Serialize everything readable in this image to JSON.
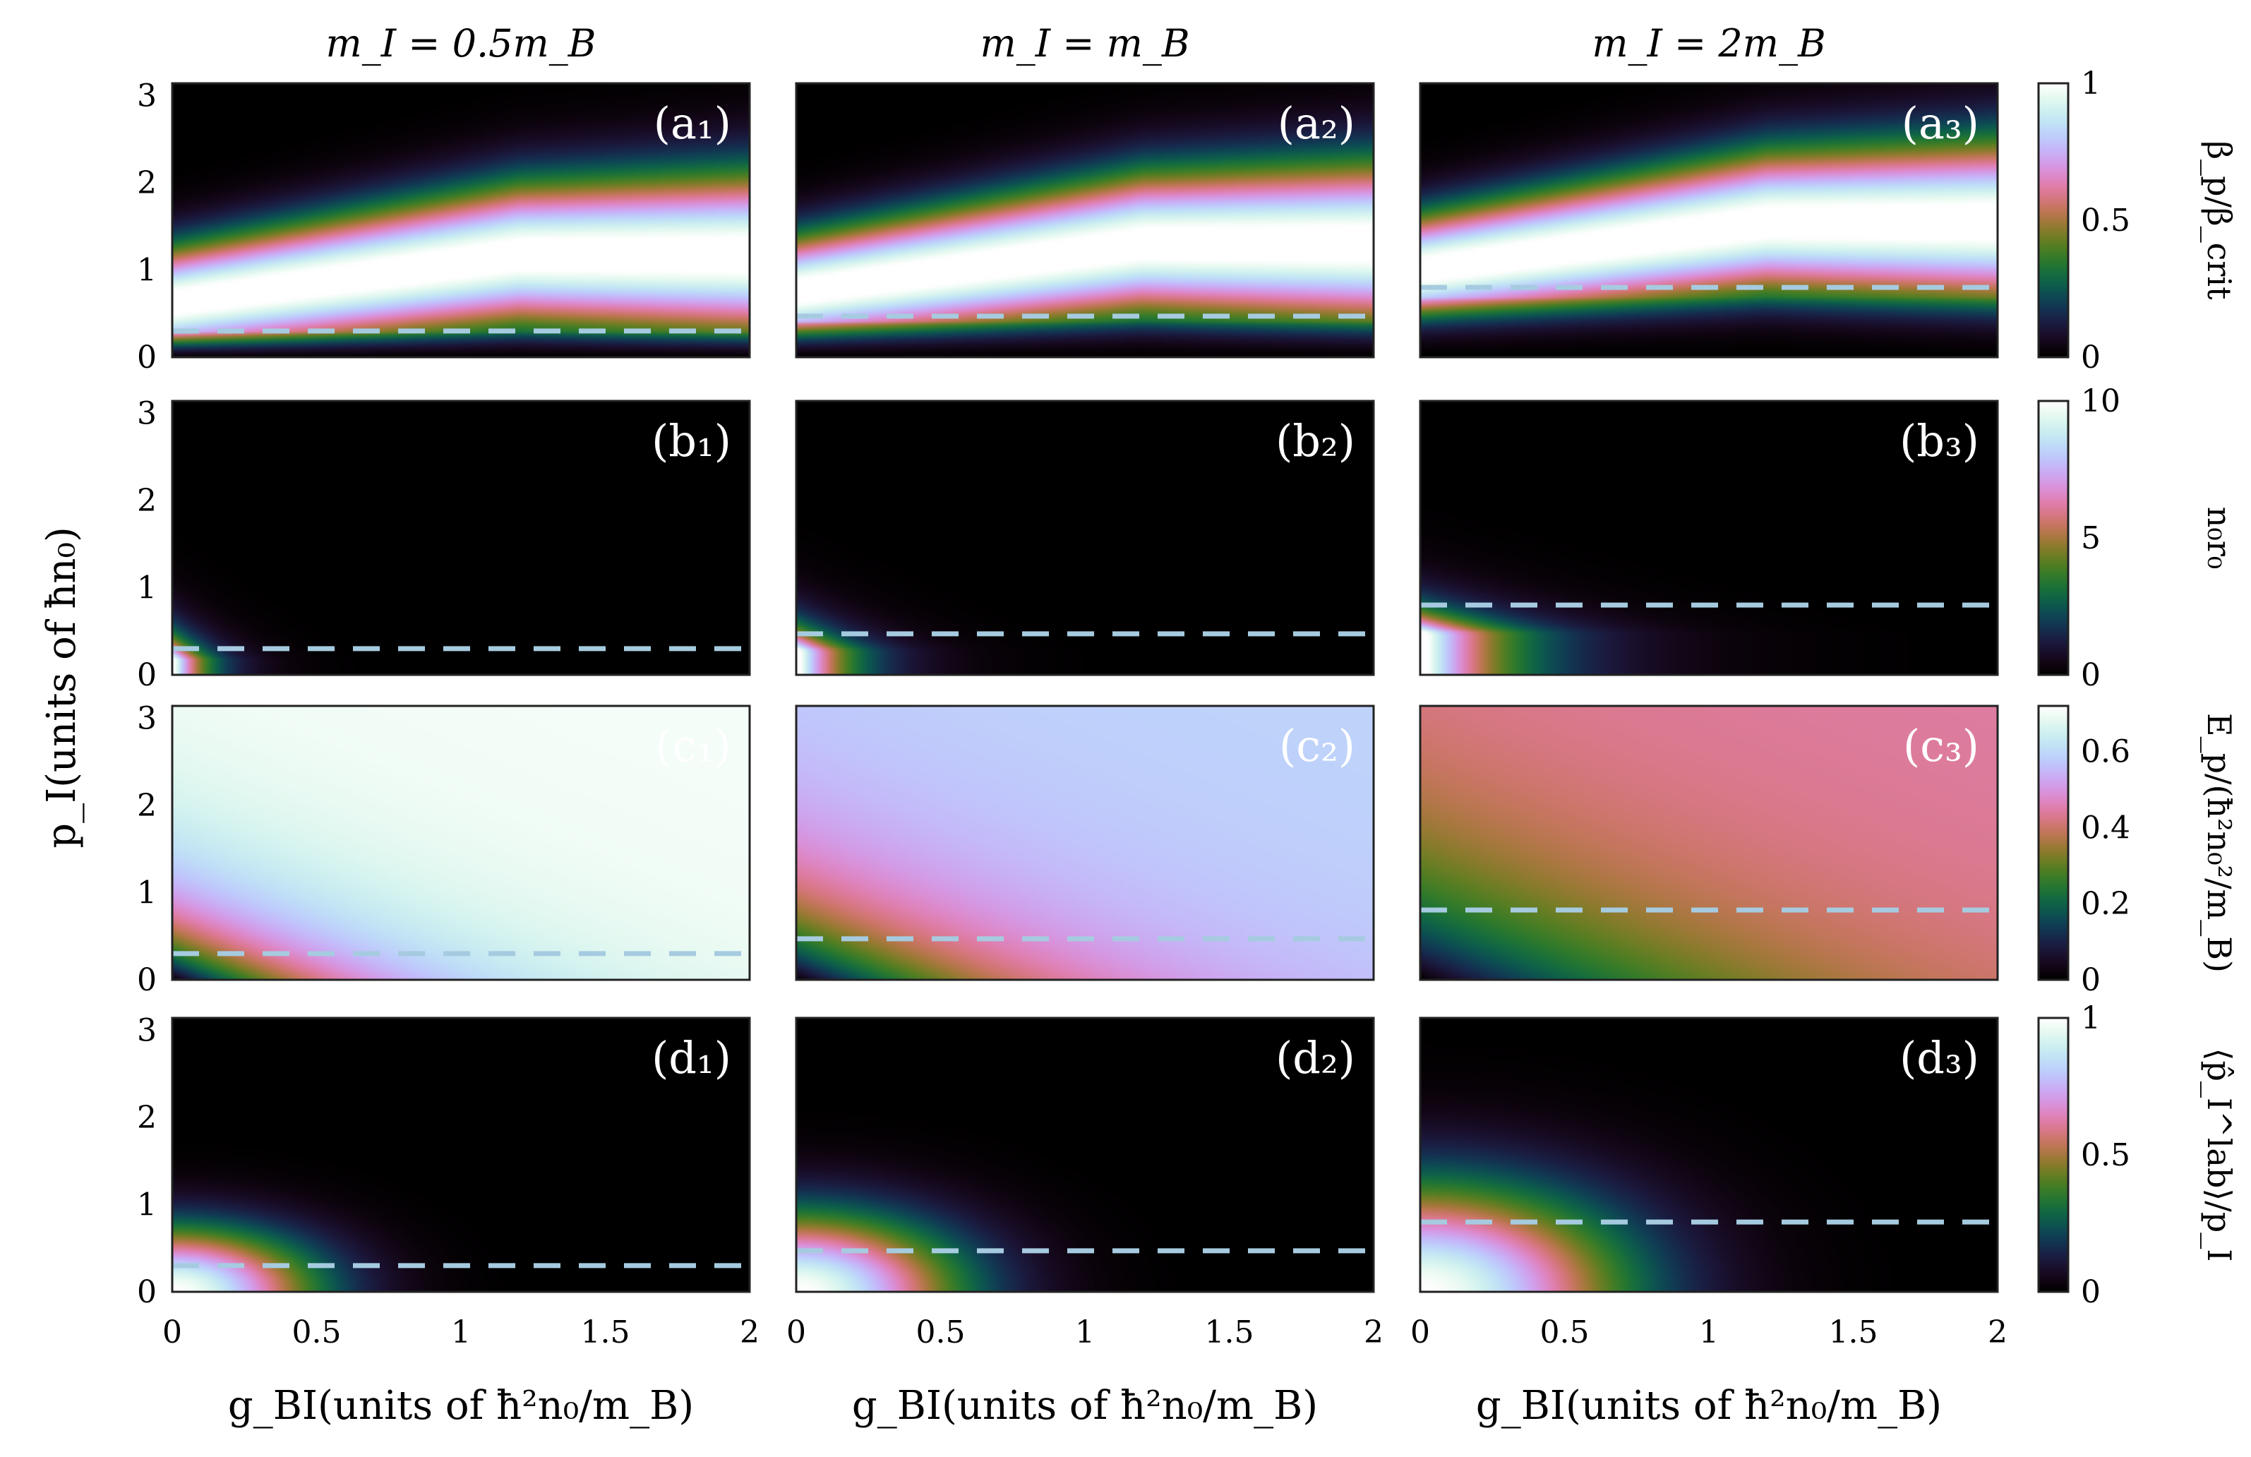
{
  "chart_data": {
    "type": "heatmap",
    "columns": [
      {
        "title": "m_I = 0.5m_B",
        "mass_ratio": 0.5,
        "critical_momentum": 0.3
      },
      {
        "title": "m_I = m_B",
        "mass_ratio": 1,
        "critical_momentum": 0.47
      },
      {
        "title": "m_I = 2m_B",
        "mass_ratio": 2,
        "critical_momentum": 0.8
      }
    ],
    "rows": [
      {
        "key": "a",
        "quantity": "β_p/β_crit",
        "panel_labels": [
          "(a₁)",
          "(a₂)",
          "(a₃)"
        ],
        "colorbar": {
          "label": "β_p/β_crit",
          "range": [
            0,
            1
          ],
          "ticks": [
            "0",
            "0.5",
            "1"
          ]
        }
      },
      {
        "key": "b",
        "quantity": "n_0 r_0",
        "panel_labels": [
          "(b₁)",
          "(b₂)",
          "(b₃)"
        ],
        "colorbar": {
          "label": "n₀r₀",
          "range": [
            0,
            10
          ],
          "ticks": [
            "0",
            "5",
            "10"
          ]
        }
      },
      {
        "key": "c",
        "quantity": "E_p",
        "panel_labels": [
          "(c₁)",
          "(c₂)",
          "(c₃)"
        ],
        "colorbar": {
          "label": "E_p/(ħ²n₀²/m_B)",
          "range": [
            0,
            0.72
          ],
          "ticks": [
            "0",
            "0.2",
            "0.4",
            "0.6"
          ]
        }
      },
      {
        "key": "d",
        "quantity": "<p_I^lab>/p_I",
        "panel_labels": [
          "(d₁)",
          "(d₂)",
          "(d₃)"
        ],
        "colorbar": {
          "label": "⟨p̂_I^lab⟩/p_I",
          "range": [
            0,
            1
          ],
          "ticks": [
            "0",
            "0.5",
            "1"
          ]
        }
      }
    ],
    "x_axis": {
      "label": "g_BI(units of ħ²n₀/m_B)",
      "range": [
        0,
        2
      ],
      "ticks": [
        "0",
        "0.5",
        "1",
        "1.5",
        "2"
      ]
    },
    "y_axis": {
      "label": "p_I(units of ħn₀)",
      "range": [
        0,
        3.14
      ],
      "ticks": [
        "0",
        "1",
        "2",
        "3"
      ]
    },
    "reference_line": {
      "style": "dashed",
      "color": "#a6cbe0"
    },
    "colormap": "cubehelix"
  }
}
